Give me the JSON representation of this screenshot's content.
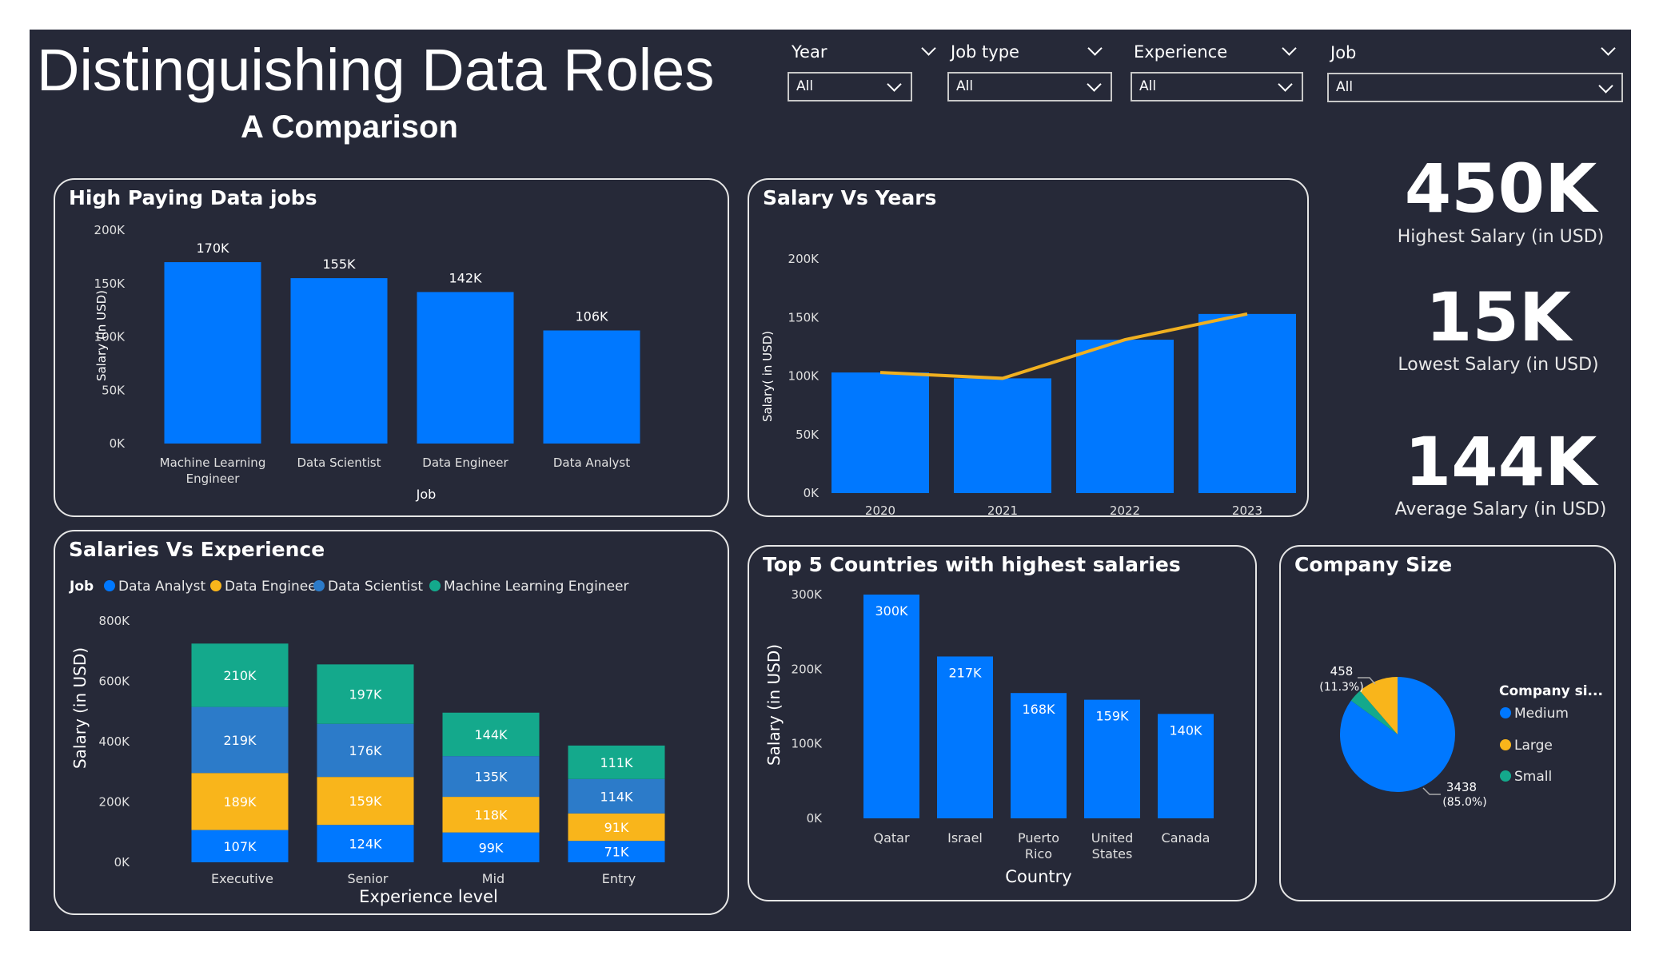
{
  "header": {
    "title": "Distinguishing Data Roles",
    "subtitle": "A Comparison"
  },
  "slicers": [
    {
      "label": "Year",
      "value": "All"
    },
    {
      "label": "Job type",
      "value": "All"
    },
    {
      "label": "Experience",
      "value": "All"
    },
    {
      "label": "Job",
      "value": "All"
    }
  ],
  "kpis": [
    {
      "value": "450K",
      "label": "Highest Salary (in USD)"
    },
    {
      "value": "15K",
      "label": "Lowest Salary (in USD)"
    },
    {
      "value": "144K",
      "label": "Average Salary (in USD)"
    }
  ],
  "colors": {
    "background": "#262938",
    "blue": "#0078ff",
    "yellow": "#f9b51b",
    "teal": "#14a98c",
    "steel": "#2c7bc9",
    "line": "#f0b020"
  },
  "chart_data": [
    {
      "id": "high_paying",
      "type": "bar",
      "title": "High Paying Data jobs",
      "xlabel": "Job",
      "ylabel": "Salary (in USD)",
      "categories": [
        "Machine Learning Engineer",
        "Data Scientist",
        "Data Engineer",
        "Data Analyst"
      ],
      "values": [
        170000,
        155000,
        142000,
        106000
      ],
      "data_labels": [
        "170K",
        "155K",
        "142K",
        "106K"
      ],
      "y_ticks": [
        "0K",
        "50K",
        "100K",
        "150K",
        "200K"
      ],
      "ylim": [
        0,
        200000
      ]
    },
    {
      "id": "salary_years",
      "type": "bar",
      "title": "Salary Vs Years",
      "xlabel": "Year",
      "ylabel": "Salary( in USD)",
      "categories": [
        "2020",
        "2021",
        "2022",
        "2023"
      ],
      "values": [
        103000,
        98000,
        131000,
        153000
      ],
      "line_values": [
        103000,
        98000,
        131000,
        153000
      ],
      "y_ticks": [
        "0K",
        "50K",
        "100K",
        "150K",
        "200K"
      ],
      "ylim": [
        0,
        200000
      ]
    },
    {
      "id": "salaries_experience",
      "type": "bar",
      "stacked": true,
      "title": "Salaries Vs Experience",
      "legend_title": "Job",
      "xlabel": "Experience level",
      "ylabel": "Salary (in USD)",
      "categories": [
        "Executive",
        "Senior",
        "Mid",
        "Entry"
      ],
      "series": [
        {
          "name": "Data Analyst",
          "color": "#0078ff",
          "values": [
            107000,
            124000,
            99000,
            71000
          ],
          "labels": [
            "107K",
            "124K",
            "99K",
            "71K"
          ]
        },
        {
          "name": "Data Engineer",
          "color": "#f9b51b",
          "values": [
            189000,
            159000,
            118000,
            91000
          ],
          "labels": [
            "189K",
            "159K",
            "118K",
            "91K"
          ]
        },
        {
          "name": "Data Scientist",
          "color": "#2c7bc9",
          "values": [
            219000,
            176000,
            135000,
            114000
          ],
          "labels": [
            "219K",
            "176K",
            "135K",
            "114K"
          ]
        },
        {
          "name": "Machine Learning Engineer",
          "color": "#14a98c",
          "values": [
            210000,
            197000,
            144000,
            111000
          ],
          "labels": [
            "210K",
            "197K",
            "144K",
            "111K"
          ]
        }
      ],
      "y_ticks": [
        "0K",
        "200K",
        "400K",
        "600K",
        "800K"
      ],
      "ylim": [
        0,
        800000
      ]
    },
    {
      "id": "top_countries",
      "type": "bar",
      "title": "Top 5 Countries with highest salaries",
      "xlabel": "Country",
      "ylabel": "Salary (in USD)",
      "categories": [
        "Qatar",
        "Israel",
        "Puerto Rico",
        "United States",
        "Canada"
      ],
      "values": [
        300000,
        217000,
        168000,
        159000,
        140000
      ],
      "data_labels": [
        "300K",
        "217K",
        "168K",
        "159K",
        "140K"
      ],
      "y_ticks": [
        "0K",
        "100K",
        "200K",
        "300K"
      ],
      "ylim": [
        0,
        300000
      ]
    },
    {
      "id": "company_size",
      "type": "pie",
      "title": "Company Size",
      "legend_title": "Company si...",
      "slices": [
        {
          "name": "Medium",
          "value": 3438,
          "label": "3438",
          "pct": "(85.0%)",
          "color": "#0078ff"
        },
        {
          "name": "Large",
          "value": 458,
          "label": "458",
          "pct": "(11.3%)",
          "color": "#f9b51b"
        },
        {
          "name": "Small",
          "value": 148,
          "label": "",
          "pct": "",
          "color": "#14a98c"
        }
      ]
    }
  ]
}
